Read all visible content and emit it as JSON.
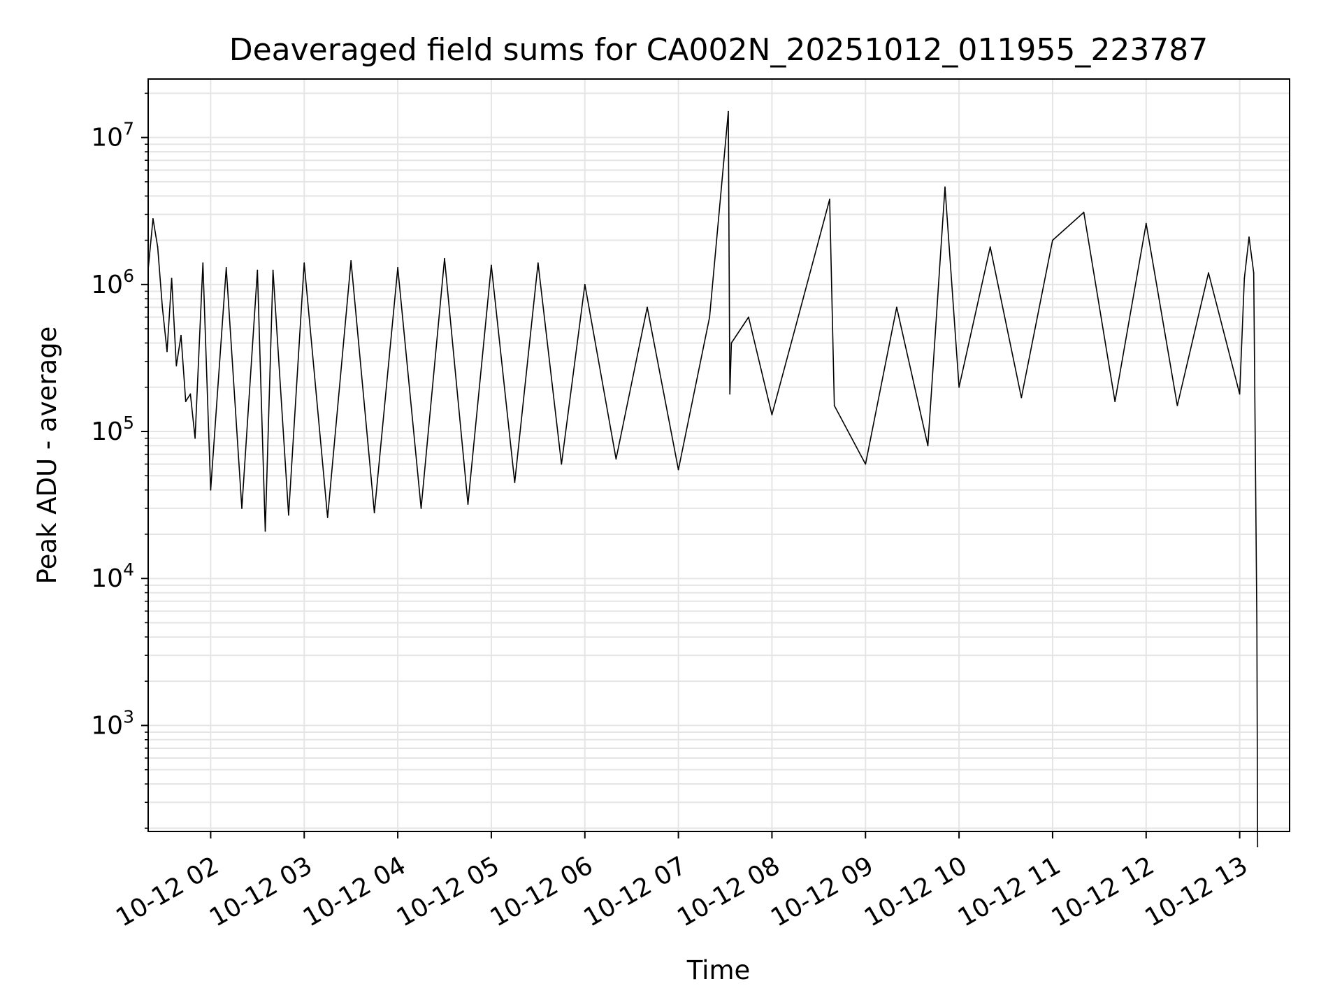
{
  "chart_data": {
    "type": "line",
    "title": "Deaveraged field sums for CA002N_20251012_011955_223787",
    "xlabel": "Time",
    "ylabel": "Peak ADU - average",
    "yscale": "log",
    "ylim": [
      190,
      25000000
    ],
    "xlim": [
      "2025-10-12T01:19:55",
      "2025-10-12T13:32:00"
    ],
    "grid": true,
    "line_color": "#000000",
    "grid_color": "#e5e5e5",
    "x_ticks": [
      {
        "value": "2025-10-12T02:00:00",
        "label": "10-12 02"
      },
      {
        "value": "2025-10-12T03:00:00",
        "label": "10-12 03"
      },
      {
        "value": "2025-10-12T04:00:00",
        "label": "10-12 04"
      },
      {
        "value": "2025-10-12T05:00:00",
        "label": "10-12 05"
      },
      {
        "value": "2025-10-12T06:00:00",
        "label": "10-12 06"
      },
      {
        "value": "2025-10-12T07:00:00",
        "label": "10-12 07"
      },
      {
        "value": "2025-10-12T08:00:00",
        "label": "10-12 08"
      },
      {
        "value": "2025-10-12T09:00:00",
        "label": "10-12 09"
      },
      {
        "value": "2025-10-12T10:00:00",
        "label": "10-12 10"
      },
      {
        "value": "2025-10-12T11:00:00",
        "label": "10-12 11"
      },
      {
        "value": "2025-10-12T12:00:00",
        "label": "10-12 12"
      },
      {
        "value": "2025-10-12T13:00:00",
        "label": "10-12 13"
      }
    ],
    "y_ticks": [
      {
        "value": 1000,
        "base": "10",
        "exp": "3"
      },
      {
        "value": 10000,
        "base": "10",
        "exp": "4"
      },
      {
        "value": 100000,
        "base": "10",
        "exp": "5"
      },
      {
        "value": 1000000,
        "base": "10",
        "exp": "6"
      },
      {
        "value": 10000000,
        "base": "10",
        "exp": "7"
      }
    ],
    "series": [
      {
        "x": [
          "2025-10-12T01:20:00",
          "2025-10-12T01:23:00",
          "2025-10-12T01:26:00",
          "2025-10-12T01:29:00",
          "2025-10-12T01:32:00",
          "2025-10-12T01:35:00",
          "2025-10-12T01:38:00",
          "2025-10-12T01:41:00",
          "2025-10-12T01:44:00",
          "2025-10-12T01:47:00",
          "2025-10-12T01:50:00",
          "2025-10-12T01:55:00",
          "2025-10-12T02:00:00",
          "2025-10-12T02:10:00",
          "2025-10-12T02:20:00",
          "2025-10-12T02:30:00",
          "2025-10-12T02:35:00",
          "2025-10-12T02:40:00",
          "2025-10-12T02:50:00",
          "2025-10-12T03:00:00",
          "2025-10-12T03:15:00",
          "2025-10-12T03:30:00",
          "2025-10-12T03:45:00",
          "2025-10-12T04:00:00",
          "2025-10-12T04:15:00",
          "2025-10-12T04:30:00",
          "2025-10-12T04:45:00",
          "2025-10-12T05:00:00",
          "2025-10-12T05:15:00",
          "2025-10-12T05:30:00",
          "2025-10-12T05:45:00",
          "2025-10-12T06:00:00",
          "2025-10-12T06:20:00",
          "2025-10-12T06:40:00",
          "2025-10-12T07:00:00",
          "2025-10-12T07:20:00",
          "2025-10-12T07:32:00",
          "2025-10-12T07:33:00",
          "2025-10-12T07:34:00",
          "2025-10-12T07:45:00",
          "2025-10-12T08:00:00",
          "2025-10-12T08:20:00",
          "2025-10-12T08:37:00",
          "2025-10-12T08:40:00",
          "2025-10-12T09:00:00",
          "2025-10-12T09:20:00",
          "2025-10-12T09:40:00",
          "2025-10-12T09:51:00",
          "2025-10-12T10:00:00",
          "2025-10-12T10:20:00",
          "2025-10-12T10:40:00",
          "2025-10-12T11:00:00",
          "2025-10-12T11:20:00",
          "2025-10-12T11:40:00",
          "2025-10-12T12:00:00",
          "2025-10-12T12:20:00",
          "2025-10-12T12:40:00",
          "2025-10-12T13:00:00",
          "2025-10-12T13:03:00",
          "2025-10-12T13:06:00",
          "2025-10-12T13:09:00",
          "2025-10-12T13:11:00",
          "2025-10-12T13:11:30"
        ],
        "y": [
          1300000,
          2800000,
          1800000,
          700000,
          350000,
          1100000,
          280000,
          450000,
          160000,
          180000,
          90000,
          1400000,
          40000,
          1300000,
          30000,
          1250000,
          21000,
          1250000,
          27000,
          1400000,
          26000,
          1450000,
          28000,
          1300000,
          30000,
          1500000,
          32000,
          1350000,
          45000,
          1400000,
          60000,
          1000000,
          65000,
          700000,
          55000,
          600000,
          15000000,
          180000,
          400000,
          600000,
          130000,
          800000,
          3800000,
          150000,
          60000,
          700000,
          80000,
          4600000,
          200000,
          1800000,
          170000,
          2000000,
          3100000,
          160000,
          2600000,
          150000,
          1200000,
          180000,
          1100000,
          2100000,
          1200000,
          5000,
          150
        ]
      }
    ]
  }
}
